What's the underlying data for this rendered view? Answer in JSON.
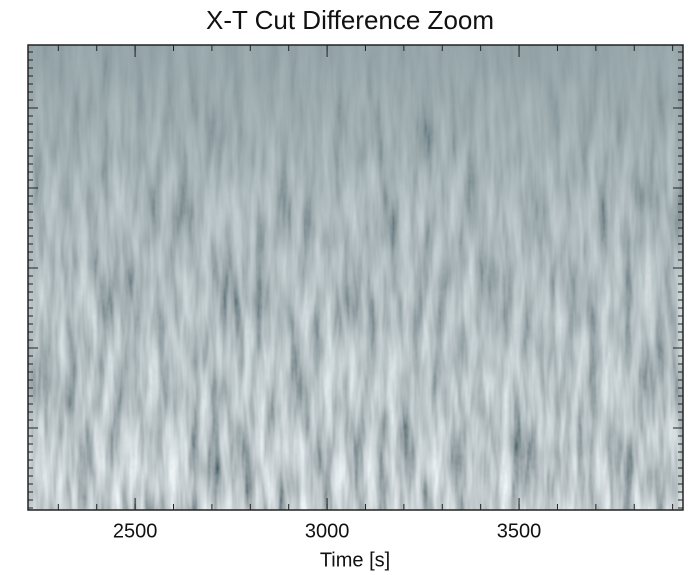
{
  "chart_data": {
    "type": "image",
    "title": "X-T Cut Difference Zoom",
    "x_label": "Time [s]",
    "xlim": [
      2221,
      3927
    ],
    "xticks": [
      2500,
      3000,
      3500
    ],
    "colormap": "gray"
  }
}
